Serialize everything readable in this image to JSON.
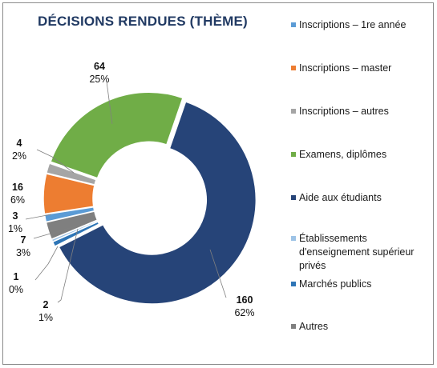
{
  "chart_data": {
    "type": "pie",
    "variant": "donut",
    "title": "DÉCISIONS RENDUES (THÈME)",
    "legend": "right",
    "categories": [
      "Inscriptions – 1re année",
      "Inscriptions – master",
      "Inscriptions – autres",
      "Examens, diplômes",
      "Aide aux étudiants",
      "Établissements d'enseignement supérieur privés",
      "Marchés publics",
      "Autres"
    ],
    "values": [
      3,
      16,
      4,
      64,
      160,
      1,
      2,
      7
    ],
    "percent_labels": [
      "1%",
      "6%",
      "2%",
      "25%",
      "62%",
      "0%",
      "1%",
      "3%"
    ],
    "colors": [
      "#5b9bd5",
      "#ed7d31",
      "#a5a5a5",
      "#70ad47",
      "#264478",
      "#9dc3e6",
      "#2e75b6",
      "#7f7f7f"
    ]
  }
}
